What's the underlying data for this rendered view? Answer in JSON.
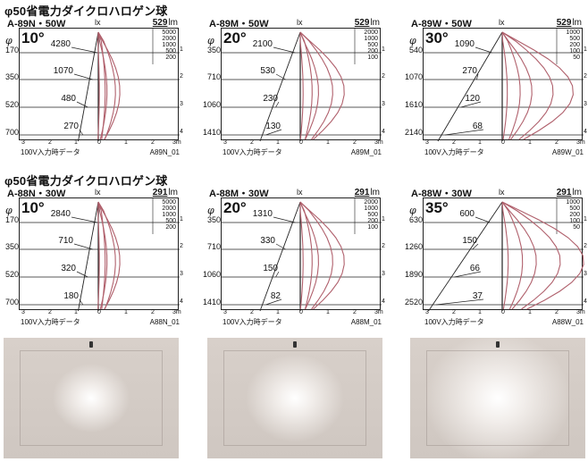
{
  "sections": [
    {
      "title": "φ50省電力ダイクロハロゲン球",
      "charts": [
        {
          "model": "A-89N・50W",
          "angle": "10°",
          "lm": "529",
          "lx_label": "lx",
          "lm_unit": "lm",
          "scale": [
            "5000",
            "2000",
            "1000",
            "500",
            "200"
          ],
          "distances": [
            "170",
            "350",
            "520",
            "700"
          ],
          "lux": [
            "4280",
            "1070",
            "480",
            "270"
          ],
          "x_ticks": [
            "3",
            "2",
            "1",
            "0",
            "1",
            "2",
            "3m"
          ],
          "right_ticks": [
            "1",
            "2",
            "3",
            "4"
          ],
          "note": "100V入力時データ",
          "code": "A89N_01",
          "spread": 0.15
        },
        {
          "model": "A-89M・50W",
          "angle": "20°",
          "lm": "529",
          "lx_label": "lx",
          "lm_unit": "lm",
          "scale": [
            "2000",
            "1000",
            "500",
            "200",
            "100"
          ],
          "distances": [
            "350",
            "710",
            "1060",
            "1410"
          ],
          "lux": [
            "2100",
            "530",
            "230",
            "130"
          ],
          "x_ticks": [
            "3",
            "2",
            "1",
            "0",
            "1",
            "2",
            "3m"
          ],
          "right_ticks": [
            "1",
            "2",
            "3",
            "4"
          ],
          "note": "100V入力時データ",
          "code": "A89M_01",
          "spread": 0.3
        },
        {
          "model": "A-89W・50W",
          "angle": "30°",
          "lm": "529",
          "lx_label": "lx",
          "lm_unit": "lm",
          "scale": [
            "1000",
            "500",
            "200",
            "100",
            "50"
          ],
          "distances": [
            "540",
            "1070",
            "1610",
            "2140"
          ],
          "lux": [
            "1090",
            "270",
            "120",
            "68"
          ],
          "x_ticks": [
            "3",
            "2",
            "1",
            "0",
            "1",
            "2",
            "3m"
          ],
          "right_ticks": [
            "1",
            "2",
            "3",
            "4"
          ],
          "note": "100V入力時データ",
          "code": "A89W_01",
          "spread": 0.48
        }
      ]
    },
    {
      "title": "φ50省電力ダイクロハロゲン球",
      "charts": [
        {
          "model": "A-88N・30W",
          "angle": "10°",
          "lm": "291",
          "lx_label": "lx",
          "lm_unit": "lm",
          "scale": [
            "5000",
            "2000",
            "1000",
            "500",
            "200"
          ],
          "distances": [
            "170",
            "350",
            "520",
            "700"
          ],
          "lux": [
            "2840",
            "710",
            "320",
            "180"
          ],
          "x_ticks": [
            "3",
            "2",
            "1",
            "0",
            "1",
            "2",
            "3m"
          ],
          "right_ticks": [
            "1",
            "2",
            "3",
            "4"
          ],
          "note": "100V入力時データ",
          "code": "A88N_01",
          "spread": 0.15
        },
        {
          "model": "A-88M・30W",
          "angle": "20°",
          "lm": "291",
          "lx_label": "lx",
          "lm_unit": "lm",
          "scale": [
            "2000",
            "1000",
            "500",
            "200",
            "100"
          ],
          "distances": [
            "350",
            "710",
            "1060",
            "1410"
          ],
          "lux": [
            "1310",
            "330",
            "150",
            "82"
          ],
          "x_ticks": [
            "3",
            "2",
            "1",
            "0",
            "1",
            "2",
            "3m"
          ],
          "right_ticks": [
            "1",
            "2",
            "3",
            "4"
          ],
          "note": "100V入力時データ",
          "code": "A88M_01",
          "spread": 0.3
        },
        {
          "model": "A-88W・30W",
          "angle": "35°",
          "lm": "291",
          "lx_label": "lx",
          "lm_unit": "lm",
          "scale": [
            "1000",
            "500",
            "200",
            "100",
            "50"
          ],
          "distances": [
            "630",
            "1260",
            "1890",
            "2520"
          ],
          "lux": [
            "600",
            "150",
            "66",
            "37"
          ],
          "x_ticks": [
            "3",
            "2",
            "1",
            "0",
            "1",
            "2",
            "3m"
          ],
          "right_ticks": [
            "1",
            "2",
            "3",
            "4"
          ],
          "note": "100V入力時データ",
          "code": "A88W_01",
          "spread": 0.55
        }
      ]
    }
  ],
  "phi": "φ",
  "colors": {
    "curve": "#b0606c",
    "grid": "#222222",
    "wall": "#c4bcb6",
    "spot": "#ffffff"
  },
  "photos": [
    {
      "name": "narrow-beam-photo",
      "spot": 0.22
    },
    {
      "name": "medium-beam-photo",
      "spot": 0.28
    },
    {
      "name": "wide-beam-photo",
      "spot": 0.42
    }
  ]
}
